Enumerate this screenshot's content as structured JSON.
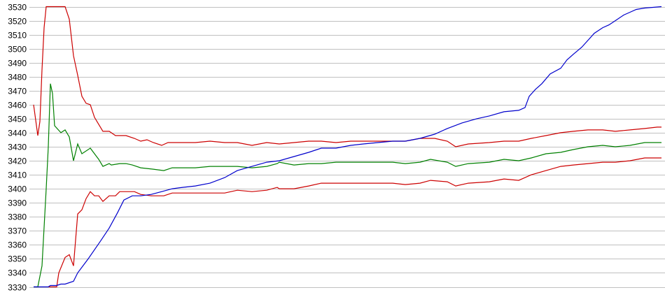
{
  "chart_data": {
    "type": "line",
    "title": "",
    "xlabel": "",
    "ylabel": "",
    "ylim": [
      3330,
      3530
    ],
    "xlim": [
      0,
      299
    ],
    "yticks": [
      "3330",
      "3340",
      "3350",
      "3360",
      "3370",
      "3380",
      "3390",
      "3400",
      "3410",
      "3420",
      "3430",
      "3440",
      "3450",
      "3460",
      "3470",
      "3480",
      "3490",
      "3500",
      "3510",
      "3520",
      "3530"
    ],
    "grid": "horizontal",
    "legend": "none",
    "series": [
      {
        "color": "#cc0000",
        "points": [
          [
            0,
            3460
          ],
          [
            2,
            3438
          ],
          [
            3,
            3448
          ],
          [
            4,
            3485
          ],
          [
            5,
            3515
          ],
          [
            6,
            3530
          ],
          [
            15,
            3530
          ],
          [
            17,
            3521
          ],
          [
            19,
            3495
          ],
          [
            21,
            3481
          ],
          [
            23,
            3466
          ],
          [
            25,
            3461
          ],
          [
            27,
            3460
          ],
          [
            29,
            3451
          ],
          [
            31,
            3446
          ],
          [
            33,
            3441
          ],
          [
            36,
            3441
          ],
          [
            39,
            3438
          ],
          [
            44,
            3438
          ],
          [
            48,
            3436
          ],
          [
            51,
            3434
          ],
          [
            54,
            3435
          ],
          [
            57,
            3433
          ],
          [
            61,
            3431
          ],
          [
            64,
            3433
          ],
          [
            71,
            3433
          ],
          [
            77,
            3433
          ],
          [
            84,
            3434
          ],
          [
            91,
            3433
          ],
          [
            97,
            3433
          ],
          [
            104,
            3431
          ],
          [
            111,
            3433
          ],
          [
            117,
            3432
          ],
          [
            124,
            3433
          ],
          [
            131,
            3434
          ],
          [
            137,
            3434
          ],
          [
            144,
            3433
          ],
          [
            151,
            3434
          ],
          [
            157,
            3434
          ],
          [
            164,
            3434
          ],
          [
            171,
            3434
          ],
          [
            177,
            3434
          ],
          [
            184,
            3436
          ],
          [
            191,
            3436
          ],
          [
            197,
            3434
          ],
          [
            201,
            3430
          ],
          [
            207,
            3432
          ],
          [
            217,
            3433
          ],
          [
            224,
            3434
          ],
          [
            231,
            3434
          ],
          [
            237,
            3436
          ],
          [
            244,
            3438
          ],
          [
            251,
            3440
          ],
          [
            257,
            3441
          ],
          [
            264,
            3442
          ],
          [
            271,
            3442
          ],
          [
            277,
            3441
          ],
          [
            284,
            3442
          ],
          [
            291,
            3443
          ],
          [
            297,
            3444
          ],
          [
            299,
            3444
          ]
        ]
      },
      {
        "color": "#008000",
        "points": [
          [
            0,
            3330
          ],
          [
            2,
            3330
          ],
          [
            4,
            3345
          ],
          [
            6,
            3400
          ],
          [
            7,
            3430
          ],
          [
            8,
            3475
          ],
          [
            9,
            3468
          ],
          [
            10,
            3445
          ],
          [
            13,
            3440
          ],
          [
            15,
            3442
          ],
          [
            17,
            3437
          ],
          [
            19,
            3420
          ],
          [
            21,
            3432
          ],
          [
            23,
            3425
          ],
          [
            27,
            3429
          ],
          [
            30,
            3423
          ],
          [
            31,
            3421
          ],
          [
            33,
            3416
          ],
          [
            36,
            3418
          ],
          [
            37,
            3417
          ],
          [
            41,
            3418
          ],
          [
            44,
            3418
          ],
          [
            47,
            3417
          ],
          [
            51,
            3415
          ],
          [
            57,
            3414
          ],
          [
            62,
            3413
          ],
          [
            66,
            3415
          ],
          [
            77,
            3415
          ],
          [
            84,
            3416
          ],
          [
            91,
            3416
          ],
          [
            97,
            3416
          ],
          [
            104,
            3415
          ],
          [
            111,
            3416
          ],
          [
            116,
            3418
          ],
          [
            117,
            3419
          ],
          [
            124,
            3417
          ],
          [
            131,
            3418
          ],
          [
            137,
            3418
          ],
          [
            144,
            3419
          ],
          [
            151,
            3419
          ],
          [
            157,
            3419
          ],
          [
            164,
            3419
          ],
          [
            171,
            3419
          ],
          [
            177,
            3418
          ],
          [
            184,
            3419
          ],
          [
            189,
            3421
          ],
          [
            197,
            3419
          ],
          [
            201,
            3416
          ],
          [
            207,
            3418
          ],
          [
            217,
            3419
          ],
          [
            224,
            3421
          ],
          [
            231,
            3420
          ],
          [
            237,
            3422
          ],
          [
            244,
            3425
          ],
          [
            251,
            3426
          ],
          [
            257,
            3428
          ],
          [
            264,
            3430
          ],
          [
            271,
            3431
          ],
          [
            277,
            3430
          ],
          [
            284,
            3431
          ],
          [
            291,
            3433
          ],
          [
            299,
            3433
          ]
        ]
      },
      {
        "color": "#cc0000",
        "points": [
          [
            7,
            3330
          ],
          [
            11,
            3330
          ],
          [
            12,
            3340
          ],
          [
            15,
            3351
          ],
          [
            17,
            3353
          ],
          [
            19,
            3345
          ],
          [
            21,
            3382
          ],
          [
            23,
            3385
          ],
          [
            25,
            3393
          ],
          [
            27,
            3398
          ],
          [
            29,
            3395
          ],
          [
            31,
            3395
          ],
          [
            33,
            3391
          ],
          [
            36,
            3395
          ],
          [
            39,
            3395
          ],
          [
            41,
            3398
          ],
          [
            48,
            3398
          ],
          [
            51,
            3396
          ],
          [
            56,
            3395
          ],
          [
            62,
            3395
          ],
          [
            66,
            3397
          ],
          [
            77,
            3397
          ],
          [
            84,
            3397
          ],
          [
            91,
            3397
          ],
          [
            97,
            3399
          ],
          [
            104,
            3398
          ],
          [
            111,
            3399
          ],
          [
            116,
            3401
          ],
          [
            117,
            3400
          ],
          [
            124,
            3400
          ],
          [
            131,
            3402
          ],
          [
            137,
            3404
          ],
          [
            144,
            3404
          ],
          [
            151,
            3404
          ],
          [
            157,
            3404
          ],
          [
            164,
            3404
          ],
          [
            171,
            3404
          ],
          [
            177,
            3403
          ],
          [
            184,
            3404
          ],
          [
            189,
            3406
          ],
          [
            197,
            3405
          ],
          [
            201,
            3402
          ],
          [
            207,
            3404
          ],
          [
            217,
            3405
          ],
          [
            224,
            3407
          ],
          [
            231,
            3406
          ],
          [
            237,
            3410
          ],
          [
            244,
            3413
          ],
          [
            251,
            3416
          ],
          [
            257,
            3417
          ],
          [
            264,
            3418
          ],
          [
            271,
            3419
          ],
          [
            277,
            3419
          ],
          [
            284,
            3420
          ],
          [
            291,
            3422
          ],
          [
            299,
            3422
          ]
        ]
      },
      {
        "color": "#0000cc",
        "points": [
          [
            0,
            3330
          ],
          [
            7,
            3330
          ],
          [
            8,
            3331
          ],
          [
            11,
            3331
          ],
          [
            13,
            3332
          ],
          [
            15,
            3332
          ],
          [
            19,
            3334
          ],
          [
            21,
            3340
          ],
          [
            26,
            3350
          ],
          [
            32,
            3363
          ],
          [
            36,
            3372
          ],
          [
            40,
            3383
          ],
          [
            43,
            3392
          ],
          [
            47,
            3395
          ],
          [
            51,
            3395
          ],
          [
            56,
            3396
          ],
          [
            61,
            3398
          ],
          [
            66,
            3400
          ],
          [
            71,
            3401
          ],
          [
            77,
            3402
          ],
          [
            84,
            3404
          ],
          [
            91,
            3408
          ],
          [
            97,
            3413
          ],
          [
            104,
            3416
          ],
          [
            111,
            3419
          ],
          [
            117,
            3420
          ],
          [
            124,
            3423
          ],
          [
            131,
            3426
          ],
          [
            137,
            3429
          ],
          [
            144,
            3429
          ],
          [
            151,
            3431
          ],
          [
            157,
            3432
          ],
          [
            164,
            3433
          ],
          [
            171,
            3434
          ],
          [
            177,
            3434
          ],
          [
            184,
            3436
          ],
          [
            191,
            3439
          ],
          [
            197,
            3443
          ],
          [
            204,
            3447
          ],
          [
            211,
            3450
          ],
          [
            217,
            3452
          ],
          [
            224,
            3455
          ],
          [
            231,
            3456
          ],
          [
            234,
            3458
          ],
          [
            236,
            3466
          ],
          [
            239,
            3471
          ],
          [
            242,
            3475
          ],
          [
            246,
            3482
          ],
          [
            251,
            3486
          ],
          [
            254,
            3492
          ],
          [
            257,
            3496
          ],
          [
            261,
            3501
          ],
          [
            264,
            3506
          ],
          [
            267,
            3511
          ],
          [
            271,
            3515
          ],
          [
            274,
            3517
          ],
          [
            277,
            3520
          ],
          [
            281,
            3524
          ],
          [
            284,
            3526
          ],
          [
            287,
            3528
          ],
          [
            291,
            3529
          ],
          [
            299,
            3530
          ]
        ]
      }
    ]
  }
}
